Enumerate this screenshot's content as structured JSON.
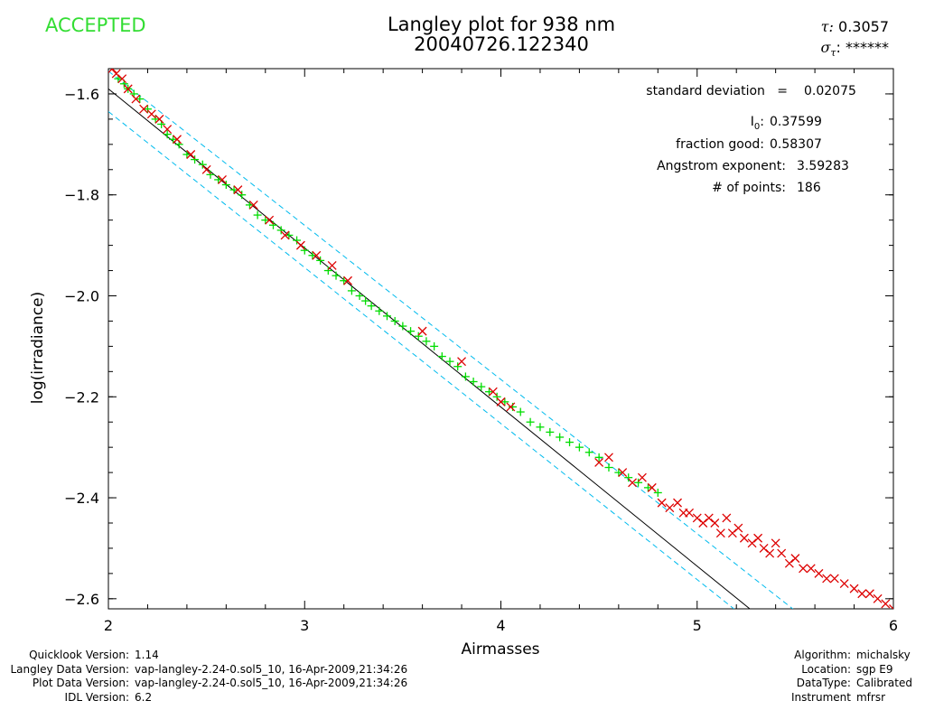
{
  "status": "ACCEPTED",
  "title_line1": "Langley plot for 938 nm",
  "title_line2": "20040726.122340",
  "tau": {
    "label": "τ:",
    "value": "0.3057"
  },
  "sigma_tau": {
    "label": "σ",
    "sub": "τ",
    "suffix": ":",
    "value": "******"
  },
  "stats": {
    "std_label": "standard deviation   =",
    "std_value": "0.02075",
    "i0_label": "I",
    "i0_sub": "0",
    "i0_suffix": ":",
    "i0_value": "0.37599",
    "frac_label": "fraction good:",
    "frac_value": "0.58307",
    "angstrom_label": "Angstrom exponent:",
    "angstrom_value": "3.59283",
    "npoints_label": "# of points:",
    "npoints_value": "186"
  },
  "colors": {
    "accepted": "#00dd00",
    "rejected": "#dd0000",
    "fit": "#000000",
    "band": "#00bbee",
    "status": "#33dd33"
  },
  "chart_data": {
    "type": "scatter",
    "title": "Langley plot for 938 nm",
    "subtitle": "20040726.122340",
    "xlabel": "Airmasses",
    "ylabel": "log(irradiance)",
    "xlim": [
      2.0,
      6.0
    ],
    "ylim": [
      -2.62,
      -1.55
    ],
    "xticks": [
      2,
      3,
      4,
      5,
      6
    ],
    "xtick_labels": [
      "2",
      "3",
      "4",
      "5",
      "6"
    ],
    "yticks": [
      -2.6,
      -2.4,
      -2.2,
      -2.0,
      -1.8,
      -1.6
    ],
    "ytick_labels": [
      "−2.6",
      "−2.4",
      "−2.2",
      "−2.0",
      "−1.8",
      "−1.6"
    ],
    "fit_line": {
      "x": [
        2.0,
        5.3
      ],
      "y": [
        -1.59,
        -2.63
      ]
    },
    "band_upper": {
      "x": [
        2.0,
        5.52
      ],
      "y": [
        -1.555,
        -2.63
      ]
    },
    "band_lower": {
      "x": [
        2.0,
        5.22
      ],
      "y": [
        -1.635,
        -2.63
      ]
    },
    "series": [
      {
        "marker": "+",
        "x": [
          2.05,
          2.08,
          2.1,
          2.13,
          2.16,
          2.2,
          2.24,
          2.27,
          2.3,
          2.33,
          2.36,
          2.4,
          2.44,
          2.48,
          2.52,
          2.56,
          2.6,
          2.64,
          2.68,
          2.72,
          2.76,
          2.8,
          2.84,
          2.88,
          2.92,
          2.96,
          3.0,
          3.04,
          3.08,
          3.12,
          3.16,
          3.2,
          3.24,
          3.28,
          3.31,
          3.34,
          3.38,
          3.42,
          3.46,
          3.5,
          3.54,
          3.58,
          3.62,
          3.66,
          3.7,
          3.74,
          3.78,
          3.82,
          3.86,
          3.9,
          3.94,
          3.98,
          4.02,
          4.06,
          4.1,
          4.15,
          4.2,
          4.25,
          4.3,
          4.35,
          4.4,
          4.45,
          4.5,
          4.55,
          4.6,
          4.65,
          4.7,
          4.75,
          4.8
        ],
        "y": [
          -1.57,
          -1.58,
          -1.59,
          -1.6,
          -1.61,
          -1.63,
          -1.65,
          -1.66,
          -1.68,
          -1.69,
          -1.7,
          -1.72,
          -1.73,
          -1.74,
          -1.76,
          -1.77,
          -1.78,
          -1.79,
          -1.8,
          -1.82,
          -1.84,
          -1.85,
          -1.86,
          -1.87,
          -1.88,
          -1.89,
          -1.91,
          -1.92,
          -1.93,
          -1.95,
          -1.96,
          -1.97,
          -1.99,
          -2.0,
          -2.01,
          -2.02,
          -2.03,
          -2.04,
          -2.05,
          -2.06,
          -2.07,
          -2.08,
          -2.09,
          -2.1,
          -2.12,
          -2.13,
          -2.14,
          -2.16,
          -2.17,
          -2.18,
          -2.19,
          -2.2,
          -2.21,
          -2.22,
          -2.23,
          -2.25,
          -2.26,
          -2.27,
          -2.28,
          -2.29,
          -2.3,
          -2.31,
          -2.32,
          -2.34,
          -2.35,
          -2.36,
          -2.37,
          -2.38,
          -2.39
        ]
      },
      {
        "marker": "x",
        "x": [
          2.02,
          2.04,
          2.07,
          2.1,
          2.14,
          2.18,
          2.22,
          2.26,
          2.3,
          2.35,
          2.42,
          2.5,
          2.58,
          2.66,
          2.74,
          2.82,
          2.9,
          2.98,
          3.06,
          3.14,
          3.22,
          3.6,
          3.8,
          3.96,
          4.0,
          4.05,
          4.5,
          4.55,
          4.62,
          4.67,
          4.72,
          4.77,
          4.82,
          4.86,
          4.9,
          4.93,
          4.96,
          5.0,
          5.03,
          5.06,
          5.09,
          5.12,
          5.15,
          5.18,
          5.21,
          5.24,
          5.28,
          5.31,
          5.34,
          5.37,
          5.4,
          5.43,
          5.47,
          5.5,
          5.54,
          5.58,
          5.62,
          5.66,
          5.7,
          5.75,
          5.8,
          5.84,
          5.88,
          5.92,
          5.96,
          6.0
        ],
        "y": [
          -1.55,
          -1.56,
          -1.57,
          -1.59,
          -1.61,
          -1.63,
          -1.64,
          -1.65,
          -1.67,
          -1.69,
          -1.72,
          -1.75,
          -1.77,
          -1.79,
          -1.82,
          -1.85,
          -1.88,
          -1.9,
          -1.92,
          -1.94,
          -1.97,
          -2.07,
          -2.13,
          -2.19,
          -2.21,
          -2.22,
          -2.33,
          -2.32,
          -2.35,
          -2.37,
          -2.36,
          -2.38,
          -2.41,
          -2.42,
          -2.41,
          -2.43,
          -2.43,
          -2.44,
          -2.45,
          -2.44,
          -2.45,
          -2.47,
          -2.44,
          -2.47,
          -2.46,
          -2.48,
          -2.49,
          -2.48,
          -2.5,
          -2.51,
          -2.49,
          -2.51,
          -2.53,
          -2.52,
          -2.54,
          -2.54,
          -2.55,
          -2.56,
          -2.56,
          -2.57,
          -2.58,
          -2.59,
          -2.59,
          -2.6,
          -2.61,
          -2.62
        ]
      }
    ]
  },
  "footer_left": [
    {
      "k": "Quicklook Version:",
      "v": "1.14"
    },
    {
      "k": "Langley Data Version:",
      "v": "vap-langley-2.24-0.sol5_10, 16-Apr-2009,21:34:26"
    },
    {
      "k": "Plot Data Version:",
      "v": "vap-langley-2.24-0.sol5_10, 16-Apr-2009,21:34:26"
    },
    {
      "k": "IDL Version:",
      "v": "6.2"
    }
  ],
  "footer_right": [
    {
      "k": "Algorithm:",
      "v": "michalsky"
    },
    {
      "k": "Location:",
      "v": "sgp E9"
    },
    {
      "k": "DataType:",
      "v": "Calibrated"
    },
    {
      "k": "Instrument",
      "v": "mfrsr"
    }
  ]
}
